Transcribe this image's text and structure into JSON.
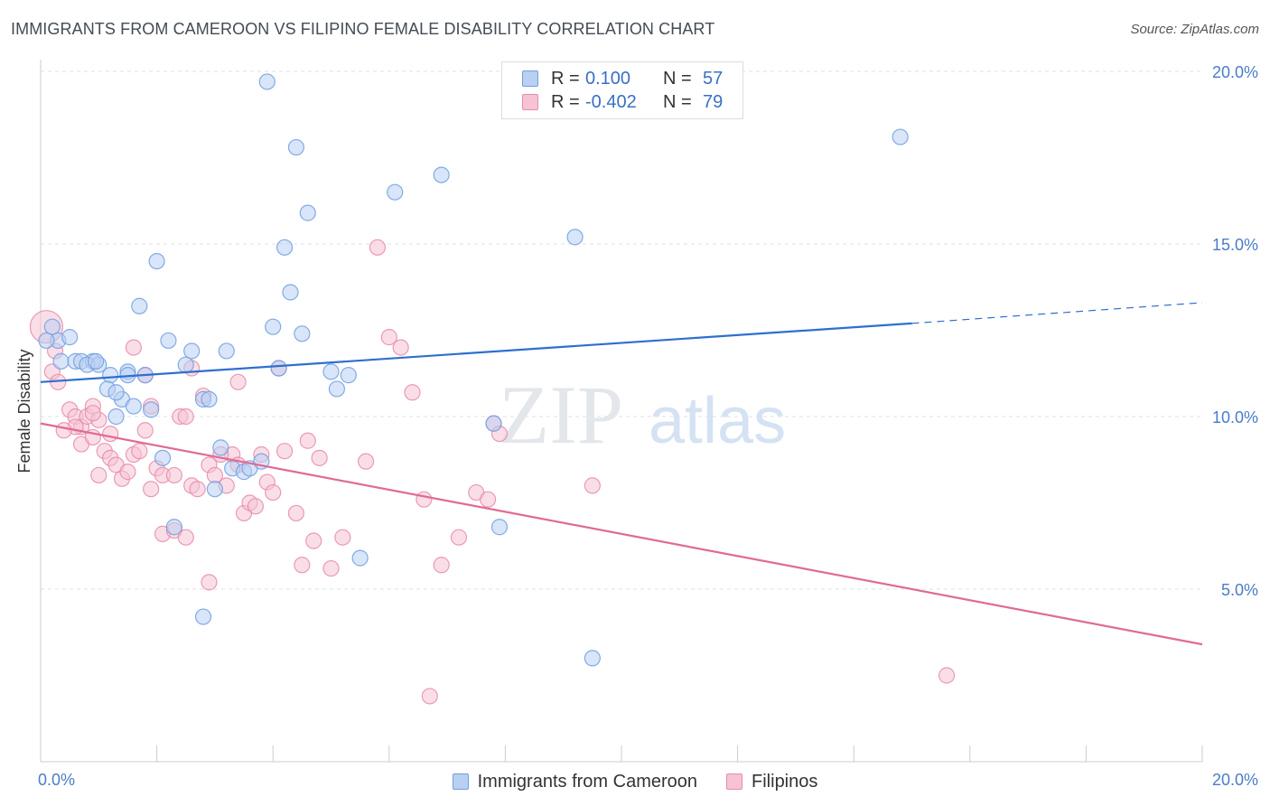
{
  "title": "IMMIGRANTS FROM CAMEROON VS FILIPINO FEMALE DISABILITY CORRELATION CHART",
  "source": "Source: ZipAtlas.com",
  "watermark": {
    "zip": "ZIP",
    "atlas": "atlas"
  },
  "legend": {
    "r_label": "R =",
    "n_label": "N =",
    "rows": [
      {
        "r": "0.100",
        "n": "57"
      },
      {
        "r": "-0.402",
        "n": "79"
      }
    ]
  },
  "chart_data": {
    "type": "scatter",
    "title": "IMMIGRANTS FROM CAMEROON VS FILIPINO FEMALE DISABILITY CORRELATION CHART",
    "xlabel": "",
    "ylabel": "Female Disability",
    "xlim": [
      0,
      20
    ],
    "ylim": [
      0,
      20
    ],
    "x_tick_labels": [
      "0.0%",
      "20.0%"
    ],
    "y_ticks": [
      {
        "value": 5,
        "label": "5.0%"
      },
      {
        "value": 10,
        "label": "10.0%"
      },
      {
        "value": 15,
        "label": "15.0%"
      },
      {
        "value": 20,
        "label": "20.0%"
      }
    ],
    "grid": true,
    "legend_placement": "top-center",
    "series": [
      {
        "name": "Immigrants from Cameroon",
        "color": "#6f9fe0",
        "fill": "#b9d0f2",
        "r": 0.1,
        "n": 57,
        "trend": {
          "x0": 0,
          "y0": 11.0,
          "x1": 15.0,
          "y1": 12.7,
          "dash_to_x": 20,
          "dash_to_y": 13.3
        },
        "points": [
          [
            0.2,
            12.6
          ],
          [
            0.3,
            12.2
          ],
          [
            0.35,
            11.6
          ],
          [
            0.5,
            12.3
          ],
          [
            0.6,
            11.6
          ],
          [
            0.7,
            11.6
          ],
          [
            0.9,
            11.6
          ],
          [
            0.8,
            11.5
          ],
          [
            1.0,
            11.5
          ],
          [
            0.95,
            11.6
          ],
          [
            1.2,
            11.2
          ],
          [
            1.15,
            10.8
          ],
          [
            1.3,
            10.0
          ],
          [
            1.5,
            11.3
          ],
          [
            1.4,
            10.5
          ],
          [
            1.6,
            10.3
          ],
          [
            1.3,
            10.7
          ],
          [
            1.5,
            11.2
          ],
          [
            1.8,
            11.2
          ],
          [
            1.9,
            10.2
          ],
          [
            2.1,
            8.8
          ],
          [
            2.2,
            12.2
          ],
          [
            2.5,
            11.5
          ],
          [
            2.6,
            11.9
          ],
          [
            2.8,
            10.5
          ],
          [
            2.9,
            10.5
          ],
          [
            3.2,
            11.9
          ],
          [
            3.1,
            9.1
          ],
          [
            3.3,
            8.5
          ],
          [
            3.0,
            7.9
          ],
          [
            3.5,
            8.4
          ],
          [
            3.6,
            8.5
          ],
          [
            3.8,
            8.7
          ],
          [
            4.0,
            12.6
          ],
          [
            4.1,
            11.4
          ],
          [
            4.5,
            12.4
          ],
          [
            4.3,
            13.6
          ],
          [
            4.2,
            14.9
          ],
          [
            4.4,
            17.8
          ],
          [
            4.6,
            15.9
          ],
          [
            3.9,
            19.7
          ],
          [
            2.0,
            14.5
          ],
          [
            1.7,
            13.2
          ],
          [
            5.0,
            11.3
          ],
          [
            5.1,
            10.8
          ],
          [
            5.3,
            11.2
          ],
          [
            6.1,
            16.5
          ],
          [
            6.9,
            17.0
          ],
          [
            7.8,
            9.8
          ],
          [
            7.9,
            6.8
          ],
          [
            9.2,
            15.2
          ],
          [
            9.5,
            3.0
          ],
          [
            2.3,
            6.8
          ],
          [
            2.8,
            4.2
          ],
          [
            5.5,
            5.9
          ],
          [
            14.8,
            18.1
          ],
          [
            0.1,
            12.2
          ]
        ]
      },
      {
        "name": "Filipinos",
        "color": "#e88aaa",
        "fill": "#f6c3d4",
        "r": -0.402,
        "n": 79,
        "trend": {
          "x0": 0,
          "y0": 9.8,
          "x1": 20.0,
          "y1": 3.4
        },
        "points": [
          [
            0.1,
            12.6
          ],
          [
            0.2,
            11.3
          ],
          [
            0.3,
            11.0
          ],
          [
            0.5,
            10.2
          ],
          [
            0.6,
            10.0
          ],
          [
            0.7,
            9.7
          ],
          [
            0.8,
            10.0
          ],
          [
            0.9,
            10.3
          ],
          [
            1.0,
            9.9
          ],
          [
            0.6,
            9.7
          ],
          [
            0.4,
            9.6
          ],
          [
            0.7,
            9.2
          ],
          [
            0.9,
            9.4
          ],
          [
            1.1,
            9.0
          ],
          [
            1.2,
            8.8
          ],
          [
            1.3,
            8.6
          ],
          [
            1.4,
            8.2
          ],
          [
            1.0,
            8.3
          ],
          [
            1.6,
            8.9
          ],
          [
            1.7,
            9.0
          ],
          [
            1.8,
            9.6
          ],
          [
            1.9,
            10.3
          ],
          [
            2.0,
            8.5
          ],
          [
            2.1,
            8.3
          ],
          [
            2.3,
            8.3
          ],
          [
            2.4,
            10.0
          ],
          [
            2.5,
            10.0
          ],
          [
            2.6,
            8.0
          ],
          [
            2.7,
            7.9
          ],
          [
            2.8,
            10.6
          ],
          [
            2.9,
            8.6
          ],
          [
            3.0,
            8.3
          ],
          [
            3.2,
            8.0
          ],
          [
            3.3,
            8.9
          ],
          [
            3.4,
            8.6
          ],
          [
            3.5,
            7.2
          ],
          [
            3.6,
            7.5
          ],
          [
            3.7,
            7.4
          ],
          [
            3.8,
            8.9
          ],
          [
            3.9,
            8.1
          ],
          [
            4.0,
            7.8
          ],
          [
            4.1,
            11.4
          ],
          [
            4.2,
            9.0
          ],
          [
            4.4,
            7.2
          ],
          [
            4.6,
            9.3
          ],
          [
            4.7,
            6.4
          ],
          [
            4.8,
            8.8
          ],
          [
            5.0,
            5.6
          ],
          [
            5.2,
            6.5
          ],
          [
            5.6,
            8.7
          ],
          [
            5.8,
            14.9
          ],
          [
            6.0,
            12.3
          ],
          [
            6.2,
            12.0
          ],
          [
            6.4,
            10.7
          ],
          [
            6.6,
            7.6
          ],
          [
            6.7,
            1.9
          ],
          [
            6.9,
            5.7
          ],
          [
            7.2,
            6.5
          ],
          [
            7.5,
            7.8
          ],
          [
            7.7,
            7.6
          ],
          [
            7.8,
            9.8
          ],
          [
            7.9,
            9.5
          ],
          [
            9.5,
            8.0
          ],
          [
            15.6,
            2.5
          ],
          [
            2.1,
            6.6
          ],
          [
            2.3,
            6.7
          ],
          [
            2.5,
            6.5
          ],
          [
            2.9,
            5.2
          ],
          [
            3.1,
            8.9
          ],
          [
            1.5,
            8.4
          ],
          [
            3.4,
            11.0
          ],
          [
            1.6,
            12.0
          ],
          [
            1.8,
            11.2
          ],
          [
            2.6,
            11.4
          ],
          [
            0.9,
            10.1
          ],
          [
            1.2,
            9.5
          ],
          [
            4.5,
            5.7
          ],
          [
            1.9,
            7.9
          ],
          [
            0.25,
            11.9
          ]
        ]
      }
    ]
  }
}
